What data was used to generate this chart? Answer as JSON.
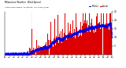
{
  "title1": "Milwaukee Weather  Wind Speed",
  "title2": "Actual and Median",
  "title3": "by Minute",
  "title4": "(24 Hours) (Old)",
  "xlim": [
    0,
    1440
  ],
  "ylim": [
    0,
    25
  ],
  "ytick_vals": [
    5,
    10,
    15,
    20,
    25
  ],
  "background_color": "#ffffff",
  "bar_color": "#dd0000",
  "median_color": "#0000ee",
  "n_points": 1440,
  "seed": 99
}
